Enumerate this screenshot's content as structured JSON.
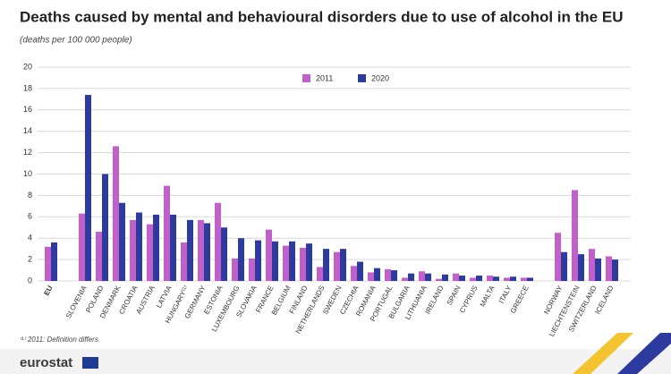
{
  "chart_data": {
    "type": "bar",
    "title": "Deaths caused by mental and behavioural disorders due to use of alcohol in the EU",
    "subtitle": "(deaths per 100 000 people)",
    "footnote": "⁽¹⁾ 2011: Definition differs",
    "source": "eurostat",
    "categories": [
      "EU",
      null,
      "SLOVENIA",
      "POLAND",
      "DENMARK",
      "CROATIA",
      "AUSTRIA",
      "LATVIA",
      "HUNGARY⁽¹⁾",
      "GERMANY",
      "ESTONIA",
      "LUXEMBOURG",
      "SLOVAKIA",
      "FRANCE",
      "BELGIUM",
      "FINLAND",
      "NETHERLANDS",
      "SWEDEN",
      "CZECHIA",
      "ROMANIA",
      "PORTUGAL",
      "BULGARIA",
      "LITHUANIA",
      "IRELAND",
      "SPAIN",
      "CYPRUS",
      "MALTA",
      "ITALY",
      "GREECE",
      null,
      "NORWAY",
      "LIECHTENSTEIN",
      "SWITZERLAND",
      "ICELAND"
    ],
    "series": [
      {
        "name": "2011",
        "color": "#c060c8",
        "values": [
          3.2,
          null,
          6.3,
          4.6,
          12.6,
          5.7,
          5.3,
          8.9,
          3.6,
          5.7,
          7.3,
          2.1,
          2.1,
          4.8,
          3.3,
          3.1,
          1.3,
          2.7,
          1.4,
          0.8,
          1.1,
          0.3,
          0.9,
          0.2,
          0.7,
          0.3,
          0.5,
          0.3,
          0.3,
          null,
          4.5,
          8.5,
          3.0,
          2.3
        ]
      },
      {
        "name": "2020",
        "color": "#2d3a9e",
        "values": [
          3.6,
          null,
          17.4,
          10.0,
          7.3,
          6.4,
          6.2,
          6.2,
          5.7,
          5.4,
          5.0,
          4.0,
          3.8,
          3.7,
          3.7,
          3.5,
          3.0,
          3.0,
          1.8,
          1.2,
          1.0,
          0.7,
          0.7,
          0.6,
          0.5,
          0.5,
          0.4,
          0.4,
          0.3,
          null,
          2.7,
          2.5,
          2.1,
          2.0
        ]
      }
    ],
    "ylim": [
      0,
      20
    ],
    "yticks": [
      0,
      2,
      4,
      6,
      8,
      10,
      12,
      14,
      16,
      18,
      20
    ],
    "grid": true
  }
}
